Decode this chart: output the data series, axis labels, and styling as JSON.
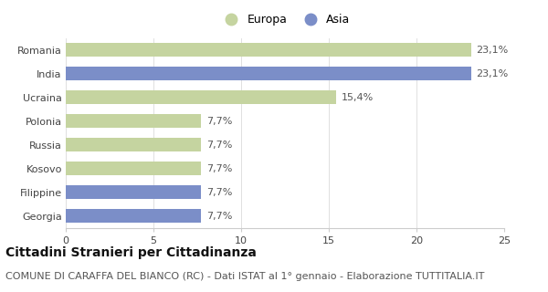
{
  "categories": [
    "Romania",
    "India",
    "Ucraina",
    "Polonia",
    "Russia",
    "Kosovo",
    "Filippine",
    "Georgia"
  ],
  "values": [
    23.1,
    23.1,
    15.4,
    7.7,
    7.7,
    7.7,
    7.7,
    7.7
  ],
  "labels": [
    "23,1%",
    "23,1%",
    "15,4%",
    "7,7%",
    "7,7%",
    "7,7%",
    "7,7%",
    "7,7%"
  ],
  "colors": [
    "#c5d4a0",
    "#7b8ec8",
    "#c5d4a0",
    "#c5d4a0",
    "#c5d4a0",
    "#c5d4a0",
    "#7b8ec8",
    "#7b8ec8"
  ],
  "legend_labels": [
    "Europa",
    "Asia"
  ],
  "legend_colors": [
    "#c5d4a0",
    "#7b8ec8"
  ],
  "xlim": [
    0,
    25
  ],
  "xticks": [
    0,
    5,
    10,
    15,
    20,
    25
  ],
  "title": "Cittadini Stranieri per Cittadinanza",
  "subtitle": "COMUNE DI CARAFFA DEL BIANCO (RC) - Dati ISTAT al 1° gennaio - Elaborazione TUTTITALIA.IT",
  "background_color": "#ffffff",
  "bar_height": 0.55,
  "title_fontsize": 10,
  "subtitle_fontsize": 8,
  "label_fontsize": 8,
  "tick_fontsize": 8,
  "legend_fontsize": 9
}
